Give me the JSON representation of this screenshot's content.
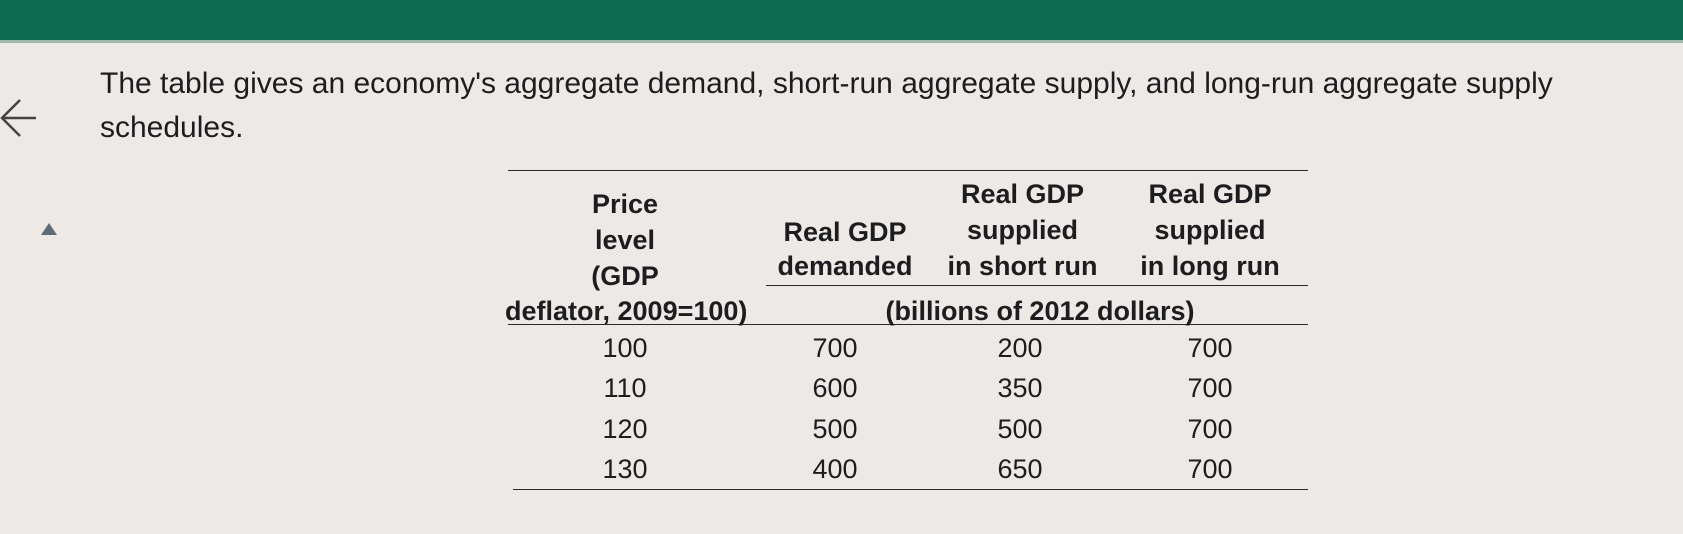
{
  "question": {
    "text": "The table gives an economy's aggregate demand, short-run aggregate supply, and long-run aggregate supply schedules."
  },
  "table": {
    "headers": {
      "price_level": [
        "Price",
        "level",
        "(GDP",
        "deflator, 2009=100)"
      ],
      "demanded": [
        "Real GDP",
        "demanded"
      ],
      "short_run": [
        "Real GDP",
        "supplied",
        "in short run"
      ],
      "long_run": [
        "Real GDP",
        "supplied",
        "in long run"
      ]
    },
    "units": "(billions of 2012 dollars)",
    "rows": [
      [
        "100",
        "700",
        "200",
        "700"
      ],
      [
        "110",
        "600",
        "350",
        "700"
      ],
      [
        "120",
        "500",
        "500",
        "700"
      ],
      [
        "130",
        "400",
        "650",
        "700"
      ]
    ]
  },
  "icons": {
    "back": "back-arrow-icon",
    "collapse": "triangle-up-icon"
  },
  "colors": {
    "topbar": "#0c6a52",
    "background": "#ece9e6",
    "text": "#1d1d1f"
  }
}
